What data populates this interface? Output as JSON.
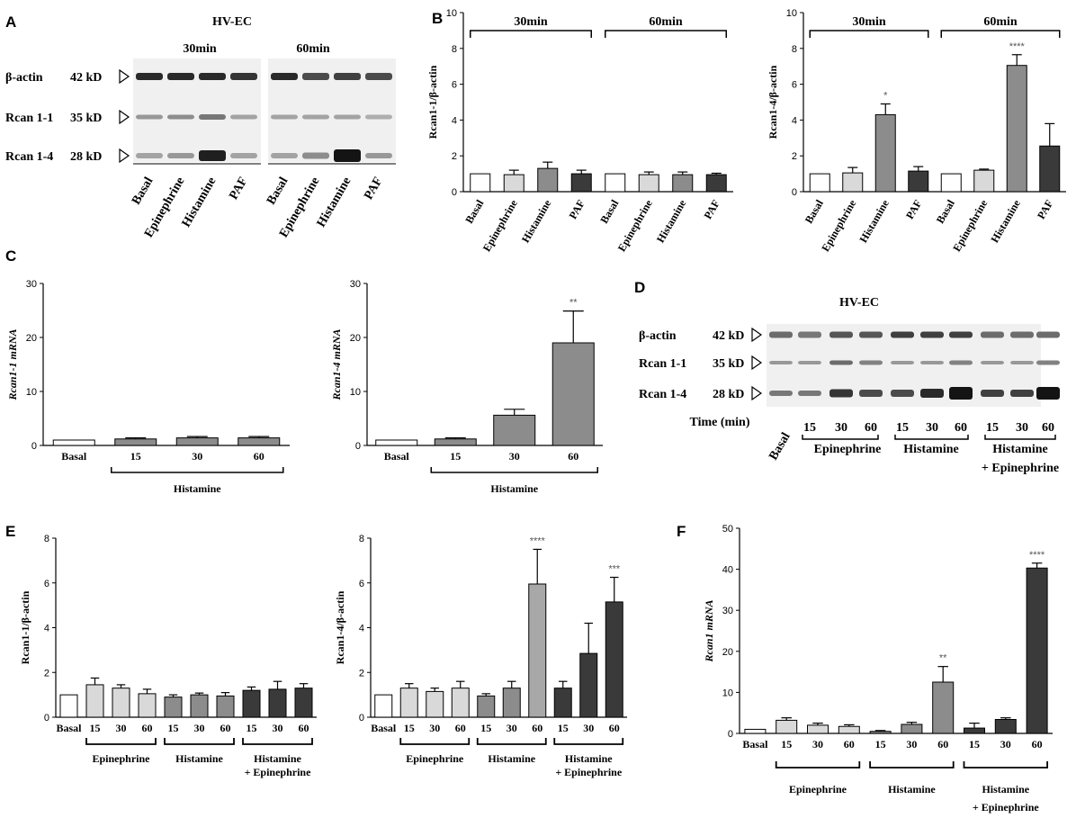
{
  "panel_labels": {
    "A": "A",
    "B": "B",
    "C": "C",
    "D": "D",
    "E": "E",
    "F": "F"
  },
  "blot_A": {
    "title": "HV-EC",
    "groups": [
      "30min",
      "60min"
    ],
    "rows": [
      {
        "name": "β-actin",
        "kd": "42 kD"
      },
      {
        "name": "Rcan 1-1",
        "kd": "35 kD"
      },
      {
        "name": "Rcan 1-4",
        "kd": "28 kD"
      }
    ],
    "lanes": [
      "Basal",
      "Epinephrine",
      "Histamine",
      "PAF",
      "Basal",
      "Epinephrine",
      "Histamine",
      "PAF"
    ]
  },
  "blot_D": {
    "title": "HV-EC",
    "rows": [
      {
        "name": "β-actin",
        "kd": "42 kD"
      },
      {
        "name": "Rcan 1-1",
        "kd": "35 kD"
      },
      {
        "name": "Rcan 1-4",
        "kd": "28 kD"
      }
    ],
    "time_label": "Time (min)",
    "basal": "Basal",
    "times": [
      "15",
      "30",
      "60",
      "15",
      "30",
      "60",
      "15",
      "30",
      "60"
    ],
    "groups": [
      "Epinephrine",
      "Histamine",
      "Histamine",
      "+ Epinephrine"
    ]
  },
  "colors": {
    "white": "#ffffff",
    "light": "#d9d9d9",
    "mid": "#8c8c8c",
    "dark": "#3a3a3a",
    "lightmid": "#a8a8a8"
  },
  "chart_data": [
    {
      "id": "B1",
      "type": "bar",
      "ylabel": "Rcan1-1/β-actin",
      "ylim": [
        0,
        10
      ],
      "yticks": [
        "0",
        "2",
        "4",
        "6",
        "8",
        "10"
      ],
      "categories": [
        "Basal",
        "Epinephrine",
        "Histamine",
        "PAF",
        "Basal",
        "Epinephrine",
        "Histamine",
        "PAF"
      ],
      "values": [
        1.0,
        0.95,
        1.3,
        1.0,
        1.0,
        0.95,
        0.95,
        0.95
      ],
      "errors": [
        0,
        0.25,
        0.35,
        0.2,
        0,
        0.15,
        0.15,
        0.08
      ],
      "brackets": [
        {
          "label": "30min",
          "from": 0,
          "to": 3
        },
        {
          "label": "60min",
          "from": 4,
          "to": 7
        }
      ],
      "stars": [
        "",
        "",
        "",
        "",
        "",
        "",
        "",
        ""
      ]
    },
    {
      "id": "B2",
      "type": "bar",
      "ylabel": "Rcan1-4/β-actin",
      "ylim": [
        0,
        10
      ],
      "yticks": [
        "0",
        "2",
        "4",
        "6",
        "8",
        "10"
      ],
      "categories": [
        "Basal",
        "Epinephrine",
        "Histamine",
        "PAF",
        "Basal",
        "Epinephrine",
        "Histamine",
        "PAF"
      ],
      "values": [
        1.0,
        1.05,
        4.3,
        1.15,
        1.0,
        1.2,
        7.05,
        2.55
      ],
      "errors": [
        0,
        0.3,
        0.6,
        0.25,
        0,
        0.06,
        0.6,
        1.25
      ],
      "brackets": [
        {
          "label": "30min",
          "from": 0,
          "to": 3
        },
        {
          "label": "60min",
          "from": 4,
          "to": 7
        }
      ],
      "stars": [
        "",
        "",
        "*",
        "",
        "",
        "",
        "****",
        ""
      ]
    },
    {
      "id": "C1",
      "type": "bar",
      "ylabel": "Rcan1-1 mRNA",
      "ylim": [
        0,
        30
      ],
      "yticks": [
        "0",
        "10",
        "20",
        "30"
      ],
      "categories": [
        "Basal",
        "15",
        "30",
        "60"
      ],
      "values": [
        1.0,
        1.2,
        1.4,
        1.4
      ],
      "errors": [
        0,
        0.2,
        0.25,
        0.25
      ],
      "bracket_label": "Histamine",
      "stars": [
        "",
        "",
        "",
        ""
      ]
    },
    {
      "id": "C2",
      "type": "bar",
      "ylabel": "Rcan1-4 mRNA",
      "ylim": [
        0,
        30
      ],
      "yticks": [
        "0",
        "10",
        "20",
        "30"
      ],
      "categories": [
        "Basal",
        "15",
        "30",
        "60"
      ],
      "values": [
        1.0,
        1.2,
        5.6,
        19.0
      ],
      "errors": [
        0,
        0.2,
        1.1,
        5.9
      ],
      "bracket_label": "Histamine",
      "stars": [
        "",
        "",
        "",
        "**"
      ]
    },
    {
      "id": "E1",
      "type": "bar",
      "ylabel": "Rcan1-1/β-actin",
      "ylim": [
        0,
        8
      ],
      "yticks": [
        "0",
        "2",
        "4",
        "6",
        "8"
      ],
      "categories": [
        "Basal",
        "15",
        "30",
        "60",
        "15",
        "30",
        "60",
        "15",
        "30",
        "60"
      ],
      "values": [
        1.0,
        1.45,
        1.3,
        1.05,
        0.9,
        1.0,
        0.95,
        1.2,
        1.25,
        1.3
      ],
      "errors": [
        0,
        0.3,
        0.15,
        0.2,
        0.1,
        0.08,
        0.15,
        0.15,
        0.35,
        0.2
      ],
      "groups": [
        [
          "Epinephrine"
        ],
        [
          "Histamine"
        ],
        [
          "Histamine",
          "+ Epinephrine"
        ]
      ],
      "stars": [
        "",
        "",
        "",
        "",
        "",
        "",
        "",
        "",
        "",
        ""
      ]
    },
    {
      "id": "E2",
      "type": "bar",
      "ylabel": "Rcan1-4/β-actin",
      "ylim": [
        0,
        8
      ],
      "yticks": [
        "0",
        "2",
        "4",
        "6",
        "8"
      ],
      "categories": [
        "Basal",
        "15",
        "30",
        "60",
        "15",
        "30",
        "60",
        "15",
        "30",
        "60"
      ],
      "values": [
        1.0,
        1.3,
        1.15,
        1.3,
        0.95,
        1.3,
        5.95,
        1.3,
        2.85,
        5.15
      ],
      "errors": [
        0,
        0.2,
        0.15,
        0.3,
        0.1,
        0.3,
        1.55,
        0.3,
        1.35,
        1.1
      ],
      "groups": [
        [
          "Epinephrine"
        ],
        [
          "Histamine"
        ],
        [
          "Histamine",
          "+ Epinephrine"
        ]
      ],
      "stars": [
        "",
        "",
        "",
        "",
        "",
        "",
        "****",
        "",
        "",
        "***"
      ]
    },
    {
      "id": "F",
      "type": "bar",
      "ylabel": "Rcan1 mRNA",
      "ylim": [
        0,
        50
      ],
      "yticks": [
        "0",
        "10",
        "20",
        "30",
        "40",
        "50"
      ],
      "categories": [
        "Basal",
        "15",
        "30",
        "60",
        "15",
        "30",
        "60",
        "15",
        "30",
        "60"
      ],
      "values": [
        1.0,
        3.2,
        2.0,
        1.7,
        0.5,
        2.2,
        12.5,
        1.3,
        3.4,
        40.3
      ],
      "errors": [
        0,
        0.6,
        0.5,
        0.4,
        0.2,
        0.5,
        3.8,
        1.2,
        0.4,
        1.2
      ],
      "groups": [
        [
          "Epinephrine"
        ],
        [
          "Histamine"
        ],
        [
          "Histamine",
          "+ Epinephrine"
        ]
      ],
      "stars": [
        "",
        "",
        "",
        "",
        "",
        "",
        "**",
        "",
        "",
        "****"
      ]
    }
  ]
}
